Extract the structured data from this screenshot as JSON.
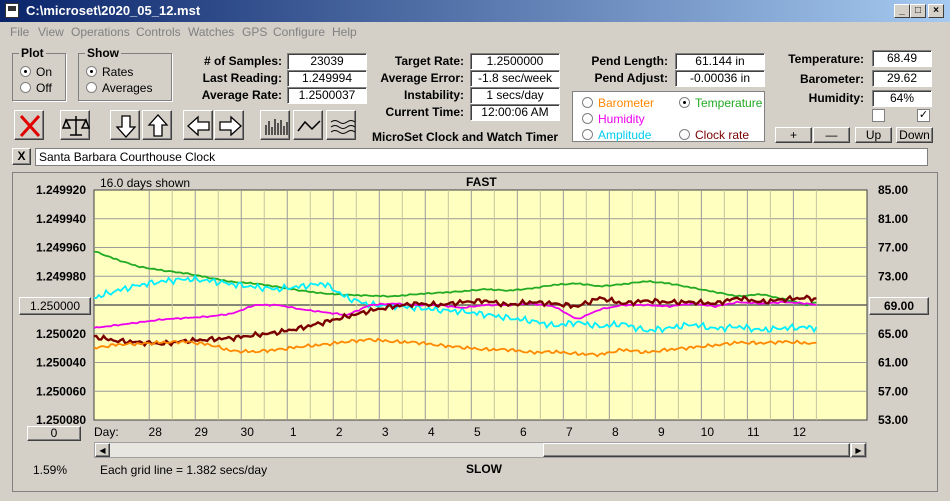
{
  "window": {
    "title": "C:\\microset\\2020_05_12.mst"
  },
  "menu": [
    "File",
    "View",
    "Operations",
    "Controls",
    "Watches",
    "GPS",
    "Configure",
    "Help"
  ],
  "plot_group": {
    "caption": "Plot",
    "on": "On",
    "off": "Off",
    "selected": "On"
  },
  "show_group": {
    "caption": "Show",
    "rates": "Rates",
    "averages": "Averages",
    "selected": "Rates"
  },
  "stats": {
    "samples_label": "# of Samples:",
    "samples": "23039",
    "last_label": "Last Reading:",
    "last": "1.249994",
    "avg_rate_label": "Average Rate:",
    "avg_rate": "1.2500037",
    "target_label": "Target Rate:",
    "target": "1.2500000",
    "avg_err_label": "Average Error:",
    "avg_err": "-1.8 sec/week",
    "instab_label": "Instability:",
    "instab": "1 secs/day",
    "time_label": "Current Time:",
    "time": "12:00:06 AM",
    "pend_len_label": "Pend Length:",
    "pend_len": "61.144 in",
    "pend_adj_label": "Pend Adjust:",
    "pend_adj": "-0.00036 in",
    "temp_label": "Temperature:",
    "temp": "68.49",
    "baro_label": "Barometer:",
    "baro": "29.62",
    "hum_label": "Humidity:",
    "hum": "64%"
  },
  "app_name": "MicroSet Clock and Watch Timer",
  "sensor_select": {
    "barometer": "Barometer",
    "temperature": "Temperature",
    "humidity": "Humidity",
    "amplitude": "Amplitude",
    "clock_rate": "Clock rate",
    "selected": "Temperature"
  },
  "scale_buttons": {
    "plus": "+",
    "minus": "—",
    "up": "Up",
    "down": "Down"
  },
  "clock_name": "Santa Barbara Courthouse Clock",
  "close_x": "X",
  "chart_data": {
    "type": "line",
    "top_label": "FAST",
    "bottom_label": "SLOW",
    "days_shown": "16.0 days shown",
    "grid_note": "Each grid line = 1.382 secs/day",
    "left_percent": "1.59%",
    "left_axis_ticks": [
      "1.249920",
      "1.249940",
      "1.249960",
      "1.249980",
      "1.250000",
      "1.250020",
      "1.250040",
      "1.250060",
      "1.250080"
    ],
    "right_axis_ticks": [
      "85.00",
      "81.00",
      "77.00",
      "73.00",
      "69.00",
      "65.00",
      "61.00",
      "57.00",
      "53.00"
    ],
    "ylim_left": [
      1.24992,
      1.25008
    ],
    "ylim_right": [
      53,
      85
    ],
    "center_button": "1.250000",
    "right_button": "69.00",
    "zero_button": "0",
    "day_label": "Day:",
    "x_ticks": [
      "28",
      "29",
      "30",
      "1",
      "2",
      "3",
      "4",
      "5",
      "6",
      "7",
      "8",
      "9",
      "10",
      "11",
      "12"
    ],
    "x": [
      0,
      0.5,
      1,
      1.5,
      2,
      2.5,
      3,
      3.5,
      4,
      4.5,
      5,
      5.5,
      6,
      6.5,
      7,
      7.5,
      8,
      8.5,
      9,
      9.5,
      10,
      10.5,
      11,
      11.5,
      12,
      12.5,
      13,
      13.5,
      14,
      14.5,
      15,
      15.5,
      15.7
    ],
    "series": [
      {
        "color": "#22aa22",
        "axis": "right",
        "values": [
          76.5,
          75.3,
          74.3,
          73.8,
          73.4,
          72.8,
          72.2,
          72.0,
          71.5,
          71.0,
          70.6,
          70.4,
          70.3,
          70.2,
          70.5,
          70.7,
          70.9,
          71.2,
          71.0,
          71.3,
          71.8,
          72.0,
          71.6,
          71.9,
          72.3,
          72.0,
          71.4,
          70.8,
          70.2,
          70.5,
          69.8,
          69.0,
          69.4
        ]
      },
      {
        "color": "#00eeff",
        "axis": "right",
        "values": [
          70.0,
          71.0,
          71.8,
          72.3,
          72.6,
          72.4,
          71.9,
          71.5,
          71.2,
          71.6,
          72.0,
          70.0,
          69.0,
          68.9,
          68.6,
          68.3,
          68.1,
          67.7,
          67.2,
          66.8,
          66.1,
          66.6,
          66.0,
          66.4,
          65.4,
          65.8,
          66.3,
          65.7,
          66.0,
          65.5,
          65.8,
          65.9,
          65.8
        ]
      },
      {
        "color": "#ee00ee",
        "axis": "left",
        "values": [
          1.250016,
          1.250014,
          1.250012,
          1.25001,
          1.250009,
          1.250008,
          1.250006,
          1.25,
          1.25,
          1.250003,
          1.250005,
          1.250007,
          1.25,
          1.249999,
          1.25,
          1.25,
          1.250002,
          1.25,
          1.25,
          1.249999,
          1.250001,
          1.25001,
          1.250003,
          1.25,
          1.25,
          1.250001,
          1.249999,
          1.250001,
          1.249998,
          1.249999,
          1.249998,
          1.249999,
          1.25
        ]
      },
      {
        "color": "#7a0000",
        "axis": "left",
        "values": [
          1.250022,
          1.250025,
          1.250026,
          1.250027,
          1.250025,
          1.250024,
          1.250023,
          1.250021,
          1.250019,
          1.250016,
          1.250012,
          1.250008,
          1.250004,
          1.250001,
          1.249999,
          1.25,
          1.249998,
          1.249997,
          1.25,
          1.249998,
          1.249999,
          1.250001,
          1.249995,
          1.249999,
          1.249997,
          1.249998,
          1.249998,
          1.249999,
          1.249995,
          1.249998,
          1.249996,
          1.249995,
          1.249996
        ]
      },
      {
        "color": "#ff8800",
        "axis": "right",
        "values": [
          63.0,
          63.5,
          63.6,
          63.8,
          63.9,
          63.5,
          62.6,
          62.5,
          62.8,
          63.2,
          63.5,
          63.9,
          64.2,
          63.9,
          63.8,
          63.4,
          63.1,
          62.8,
          62.8,
          62.4,
          62.5,
          62.2,
          62.1,
          62.8,
          62.4,
          62.8,
          63.1,
          63.4,
          63.8,
          63.7,
          63.9,
          63.7,
          63.6
        ]
      }
    ]
  }
}
